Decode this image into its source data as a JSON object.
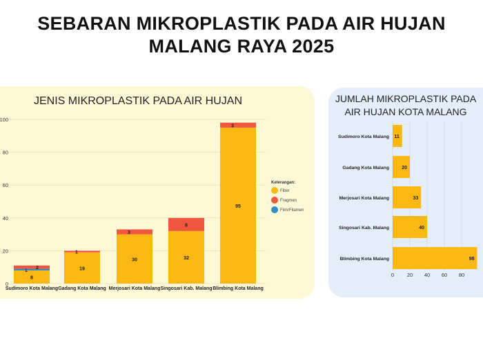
{
  "title": {
    "line1": "SEBARAN MIKROPLASTIK PADA AIR HUJAN",
    "line2": "MALANG RAYA 2025"
  },
  "colors": {
    "fiber": "#fbb713",
    "fragmen": "#f0573f",
    "film": "#2f8fc9",
    "left_panel": "#fdf8d6",
    "right_panel": "#e4eefa"
  },
  "chart_data": [
    {
      "type": "bar",
      "stacked": true,
      "title": "JENIS MIKROPLASTIK PADA AIR HUJAN",
      "categories": [
        "Sudimoro Kota Malang",
        "Gadang Kota Malang",
        "Merjosari Kota Malang",
        "Singosari Kab. Malang",
        "Blimbing Kota Malang"
      ],
      "series": [
        {
          "name": "Fiber",
          "color": "#fbb713",
          "values": [
            8,
            19,
            30,
            32,
            95
          ]
        },
        {
          "name": "Film/Filamen",
          "color": "#2f8fc9",
          "values": [
            1,
            0,
            0,
            0,
            0
          ]
        },
        {
          "name": "Fragmen",
          "color": "#f0573f",
          "values": [
            2,
            1,
            3,
            8,
            3
          ]
        }
      ],
      "legend_title": "Keterangan:",
      "legend_order": [
        "Fiber",
        "Fragmen",
        "Film/Filamen"
      ],
      "legend_placement": "right",
      "yticks": [
        0,
        20,
        40,
        60,
        80,
        100
      ],
      "ylim": [
        0,
        100
      ],
      "grid": true
    },
    {
      "type": "bar",
      "orientation": "horizontal",
      "title": "JUMLAH MIKROPLASTIK PADA AIR HUJAN KOTA MALANG",
      "title_visible": "JUMLAH MIKROPLASTIK PADA\nHUJAN KOTA MALANG",
      "categories": [
        "Sudimoro Kota Malang",
        "Gadang Kota Malang",
        "Merjosari Kota Malang",
        "Singosari Kab. Malang",
        "Blimbing Kota Malang"
      ],
      "values": [
        11,
        20,
        33,
        40,
        98
      ],
      "color": "#fbb713",
      "xticks": [
        0,
        20,
        40,
        60,
        80
      ],
      "grid": true
    }
  ]
}
